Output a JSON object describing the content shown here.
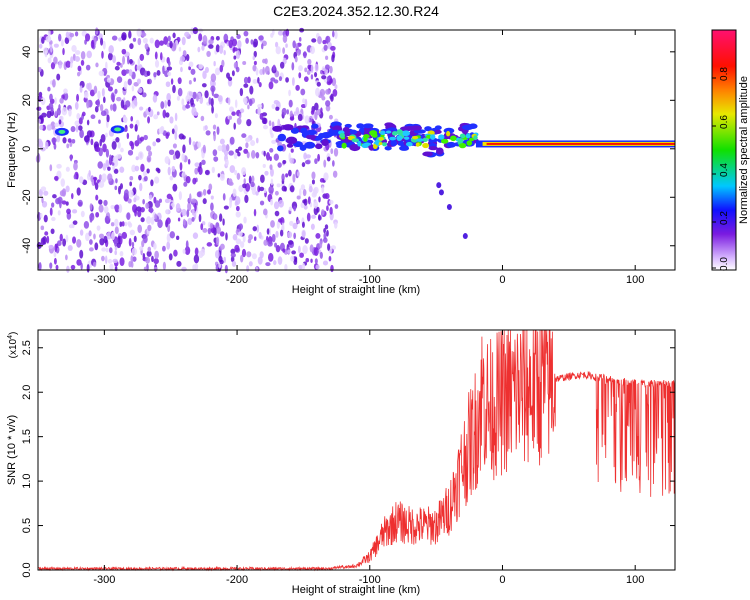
{
  "title": "C2E3.2024.352.12.30.R24",
  "chart_data": [
    {
      "type": "heatmap",
      "xlabel": "Height of straight line (km)",
      "ylabel": "Frequency (Hz)",
      "xlim": [
        -350,
        130
      ],
      "ylim": [
        -50,
        49
      ],
      "x_ticks": [
        "-300",
        "-200",
        "-100",
        "0",
        "100"
      ],
      "y_ticks": [
        "-40",
        "-20",
        "0",
        "20",
        "40"
      ],
      "colorbar": {
        "label": "Normalized spectral amplitude",
        "ticks": [
          "0.0",
          "0.2",
          "0.4",
          "0.6",
          "0.8"
        ],
        "range": [
          0,
          1
        ]
      },
      "regions": [
        {
          "x": [
            -350,
            -125
          ],
          "frequency": [
            -50,
            49
          ],
          "amplitude": 0.15
        },
        {
          "x": [
            -170,
            -20
          ],
          "frequency_center": 5,
          "amplitude": 0.5
        },
        {
          "x": [
            -20,
            130
          ],
          "frequency_center": 2,
          "amplitude": 1.0
        }
      ]
    },
    {
      "type": "line",
      "xlabel": "Height of straight line (km)",
      "ylabel": "SNR (10 * v/v)",
      "y_multiplier": "(x10",
      "y_multiplier_exp": "4",
      "y_multiplier_close": ")",
      "xlim": [
        -350,
        130
      ],
      "ylim": [
        0,
        2.7
      ],
      "x_ticks": [
        "-300",
        "-200",
        "-100",
        "0",
        "100"
      ],
      "y_ticks": [
        "0.0",
        "0.5",
        "1.0",
        "1.5",
        "2.0",
        "2.5"
      ],
      "color": "#ee3030",
      "series": [
        {
          "x": [
            -350,
            -300,
            -200,
            -130,
            -110,
            -100,
            -90,
            -80,
            -70,
            -60,
            -50,
            -40,
            -30,
            -20,
            -15,
            -10,
            0,
            10,
            20,
            30,
            40,
            60,
            80,
            100,
            120,
            130
          ],
          "values": [
            0.0,
            0.0,
            0.0,
            0.0,
            0.05,
            0.15,
            0.4,
            0.55,
            0.5,
            0.5,
            0.5,
            0.7,
            1.2,
            1.6,
            2.0,
            1.8,
            1.9,
            2.0,
            2.05,
            2.1,
            2.15,
            2.2,
            2.15,
            2.1,
            2.1,
            2.1
          ]
        }
      ]
    }
  ]
}
